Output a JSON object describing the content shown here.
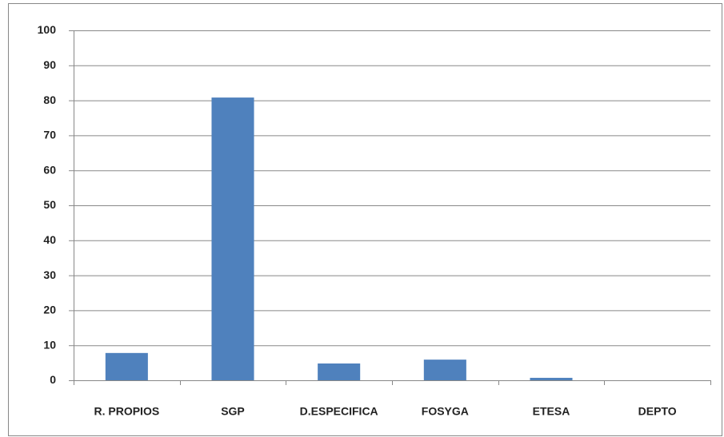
{
  "chart_data": {
    "type": "bar",
    "categories": [
      "R. PROPIOS",
      "SGP",
      "D.ESPECIFICA",
      "FOSYGA",
      "ETESA",
      "DEPTO"
    ],
    "values": [
      7.8,
      80.8,
      4.8,
      5.9,
      0.7,
      0
    ],
    "color": "#4f81bd",
    "ylim": [
      0,
      100
    ],
    "yticks": [
      0,
      10,
      20,
      30,
      40,
      50,
      60,
      70,
      80,
      90,
      100
    ],
    "grid": true
  }
}
